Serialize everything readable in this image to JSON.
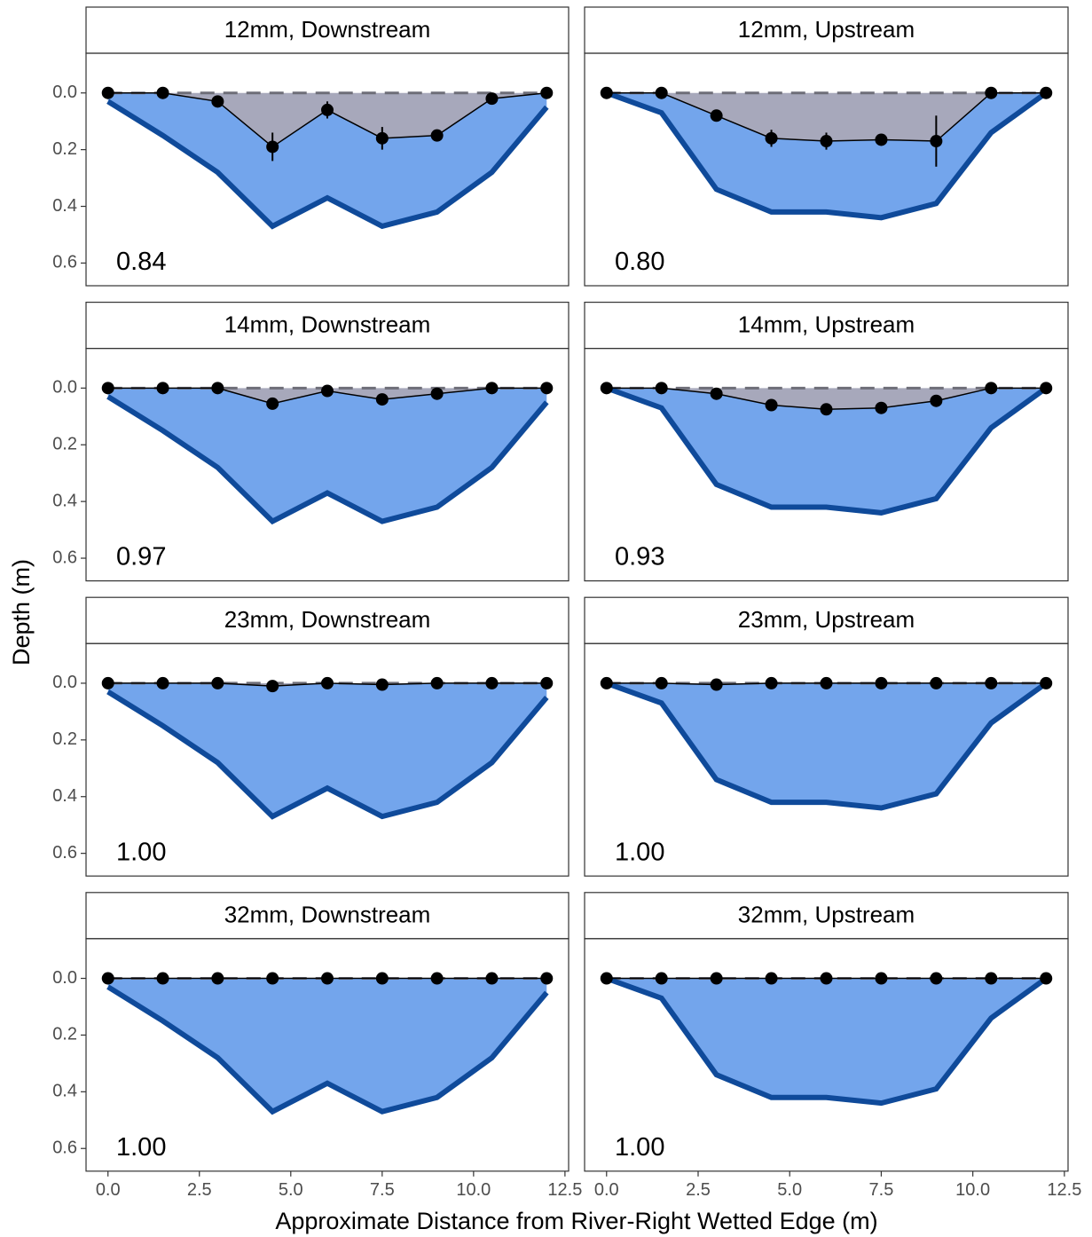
{
  "xlabel": "Approximate Distance from River-Right Wetted Edge (m)",
  "ylabel": "Depth (m)",
  "xlim": [
    -0.6,
    12.6
  ],
  "xticks": [
    {
      "value": 0,
      "label": "0.0"
    },
    2.5,
    {
      "value": 5,
      "label": "5.0"
    },
    7.5,
    {
      "value": 10,
      "label": "10.0"
    },
    12.5
  ],
  "ylim": [
    -0.14,
    0.68
  ],
  "yticks": [
    {
      "value": 0,
      "label": "0.0"
    },
    0.2,
    0.4,
    0.6
  ],
  "chart_data": [
    {
      "type": "profile",
      "title": "12mm, Downstream",
      "annotation": "0.84",
      "x": [
        0,
        1.5,
        3,
        4.5,
        6,
        7.5,
        9,
        10.5,
        12
      ],
      "bed": [
        0.03,
        0.15,
        0.28,
        0.47,
        0.37,
        0.47,
        0.42,
        0.28,
        0.05
      ],
      "values": [
        0,
        0,
        0.03,
        0.19,
        0.06,
        0.16,
        0.15,
        0.02,
        0
      ],
      "errors": [
        null,
        null,
        null,
        0.05,
        0.03,
        0.04,
        null,
        null,
        null
      ]
    },
    {
      "type": "profile",
      "title": "12mm, Upstream",
      "annotation": "0.80",
      "x": [
        0,
        1.5,
        3,
        4.5,
        6,
        7.5,
        9,
        10.5,
        12
      ],
      "bed": [
        0,
        0.07,
        0.34,
        0.42,
        0.42,
        0.44,
        0.39,
        0.14,
        0
      ],
      "values": [
        0,
        0,
        0.08,
        0.16,
        0.17,
        0.165,
        0.17,
        0,
        0
      ],
      "errors": [
        null,
        null,
        null,
        0.03,
        0.03,
        null,
        0.09,
        null,
        null
      ]
    },
    {
      "type": "profile",
      "title": "14mm, Downstream",
      "annotation": "0.97",
      "x": [
        0,
        1.5,
        3,
        4.5,
        6,
        7.5,
        9,
        10.5,
        12
      ],
      "bed": [
        0.03,
        0.15,
        0.28,
        0.47,
        0.37,
        0.47,
        0.42,
        0.28,
        0.05
      ],
      "values": [
        0,
        0,
        0,
        0.055,
        0.01,
        0.04,
        0.02,
        0,
        0
      ],
      "errors": [
        null,
        null,
        null,
        null,
        null,
        null,
        null,
        null,
        null
      ]
    },
    {
      "type": "profile",
      "title": "14mm, Upstream",
      "annotation": "0.93",
      "x": [
        0,
        1.5,
        3,
        4.5,
        6,
        7.5,
        9,
        10.5,
        12
      ],
      "bed": [
        0,
        0.07,
        0.34,
        0.42,
        0.42,
        0.44,
        0.39,
        0.14,
        0
      ],
      "values": [
        0,
        0,
        0.02,
        0.06,
        0.075,
        0.07,
        0.045,
        0,
        0
      ],
      "errors": [
        null,
        null,
        null,
        null,
        null,
        null,
        null,
        null,
        null
      ]
    },
    {
      "type": "profile",
      "title": "23mm, Downstream",
      "annotation": "1.00",
      "x": [
        0,
        1.5,
        3,
        4.5,
        6,
        7.5,
        9,
        10.5,
        12
      ],
      "bed": [
        0.03,
        0.15,
        0.28,
        0.47,
        0.37,
        0.47,
        0.42,
        0.28,
        0.05
      ],
      "values": [
        0,
        0,
        0,
        0.01,
        0,
        0.005,
        0,
        0,
        0
      ],
      "errors": [
        null,
        null,
        null,
        null,
        null,
        null,
        null,
        null,
        null
      ]
    },
    {
      "type": "profile",
      "title": "23mm, Upstream",
      "annotation": "1.00",
      "x": [
        0,
        1.5,
        3,
        4.5,
        6,
        7.5,
        9,
        10.5,
        12
      ],
      "bed": [
        0,
        0.07,
        0.34,
        0.42,
        0.42,
        0.44,
        0.39,
        0.14,
        0
      ],
      "values": [
        0,
        0,
        0.005,
        0,
        0,
        0,
        0,
        0,
        0
      ],
      "errors": [
        null,
        null,
        null,
        null,
        null,
        null,
        null,
        null,
        null
      ]
    },
    {
      "type": "profile",
      "title": "32mm, Downstream",
      "annotation": "1.00",
      "x": [
        0,
        1.5,
        3,
        4.5,
        6,
        7.5,
        9,
        10.5,
        12
      ],
      "bed": [
        0.03,
        0.15,
        0.28,
        0.47,
        0.37,
        0.47,
        0.42,
        0.28,
        0.05
      ],
      "values": [
        0,
        0,
        0,
        0,
        0,
        0,
        0,
        0,
        0
      ],
      "errors": [
        null,
        null,
        null,
        null,
        null,
        null,
        null,
        null,
        null
      ]
    },
    {
      "type": "profile",
      "title": "32mm, Upstream",
      "annotation": "1.00",
      "x": [
        0,
        1.5,
        3,
        4.5,
        6,
        7.5,
        9,
        10.5,
        12
      ],
      "bed": [
        0,
        0.07,
        0.34,
        0.42,
        0.42,
        0.44,
        0.39,
        0.14,
        0
      ],
      "values": [
        0,
        0,
        0,
        0,
        0,
        0,
        0,
        0,
        0
      ],
      "errors": [
        null,
        null,
        null,
        null,
        null,
        null,
        null,
        null,
        null
      ]
    }
  ]
}
